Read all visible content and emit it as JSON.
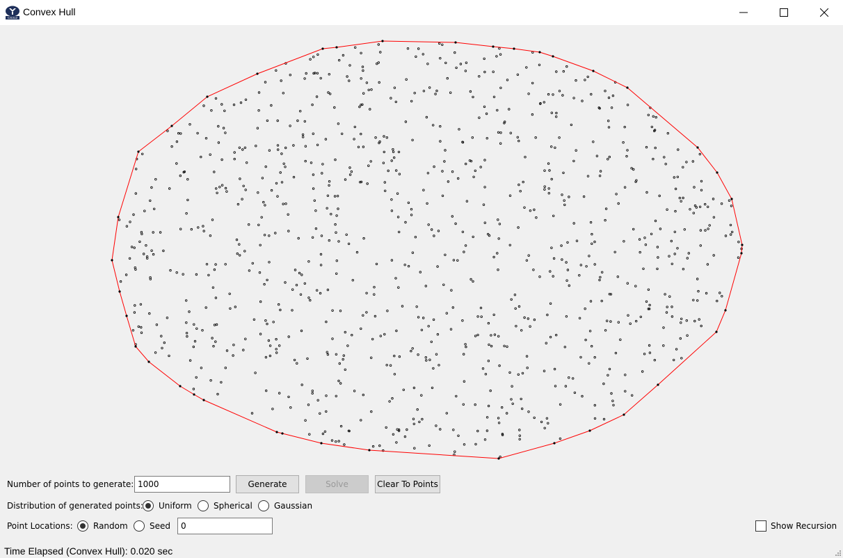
{
  "window": {
    "title": "Convex Hull",
    "icon": "byu-cs312-logo",
    "controls": [
      "minimize-icon",
      "maximize-icon",
      "close-icon"
    ]
  },
  "colors": {
    "hull": "#ff0000",
    "points": "#000000",
    "background": "#f0f0f0"
  },
  "controls": {
    "num_points_label": "Number of points to generate:",
    "num_points_value": "1000",
    "generate_label": "Generate",
    "solve_label": "Solve",
    "solve_enabled": false,
    "clear_label": "Clear To Points",
    "distribution_label": "Distribution of generated points:",
    "distribution_options": [
      "Uniform",
      "Spherical",
      "Gaussian"
    ],
    "distribution_selected": "Uniform",
    "locations_label": "Point Locations:",
    "location_options": [
      "Random",
      "Seed"
    ],
    "location_selected": "Random",
    "seed_value": "0",
    "show_recursion_label": "Show Recursion",
    "show_recursion_checked": false
  },
  "status": {
    "time_elapsed": "Time Elapsed (Convex Hull): 0.020 sec"
  }
}
